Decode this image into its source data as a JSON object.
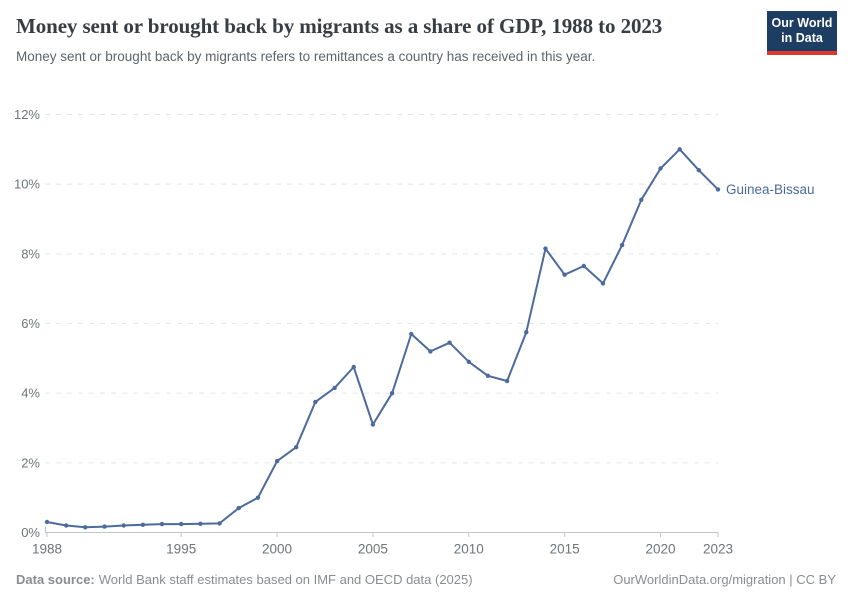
{
  "chart_data": {
    "type": "line",
    "title": "Money sent or brought back by migrants as a share of GDP, 1988 to 2023",
    "subtitle": "Money sent or brought back by migrants refers to remittances a country has received in this year.",
    "series_name": "Guinea-Bissau",
    "x": [
      1988,
      1989,
      1990,
      1991,
      1992,
      1993,
      1994,
      1995,
      1996,
      1997,
      1998,
      1999,
      2000,
      2001,
      2002,
      2003,
      2004,
      2005,
      2006,
      2007,
      2008,
      2009,
      2010,
      2011,
      2012,
      2013,
      2014,
      2015,
      2016,
      2017,
      2018,
      2019,
      2020,
      2021,
      2022,
      2023
    ],
    "values": [
      0.3,
      0.2,
      0.15,
      0.17,
      0.2,
      0.22,
      0.24,
      0.24,
      0.25,
      0.26,
      0.7,
      1.0,
      2.05,
      2.45,
      3.75,
      4.15,
      4.75,
      3.1,
      4.0,
      5.7,
      5.2,
      5.45,
      4.9,
      4.5,
      4.35,
      5.75,
      8.15,
      7.4,
      7.65,
      7.15,
      8.25,
      9.55,
      10.45,
      11.0,
      10.4,
      9.85
    ],
    "xlabel": "",
    "ylabel": "",
    "ylim": [
      0,
      12
    ],
    "ytick_values": [
      0,
      2,
      4,
      6,
      8,
      10,
      12
    ],
    "ytick_labels": [
      "0%",
      "2%",
      "4%",
      "6%",
      "8%",
      "10%",
      "12%"
    ],
    "xtick_values": [
      1988,
      1995,
      2000,
      2005,
      2010,
      2015,
      2020,
      2023
    ],
    "grid": true,
    "legend_position": "end-of-line",
    "line_color": "#4c6a9c",
    "grid_color": "#e3e5e7",
    "axis_color": "#c3c6c9"
  },
  "logo": {
    "line1": "Our World",
    "line2": "in Data",
    "background_color": "#1d3d63",
    "accent_color": "#dc392c"
  },
  "footer": {
    "source_label": "Data source:",
    "source_text": "World Bank staff estimates based on IMF and OECD data (2025)",
    "credit": "OurWorldinData.org/migration | CC BY"
  }
}
